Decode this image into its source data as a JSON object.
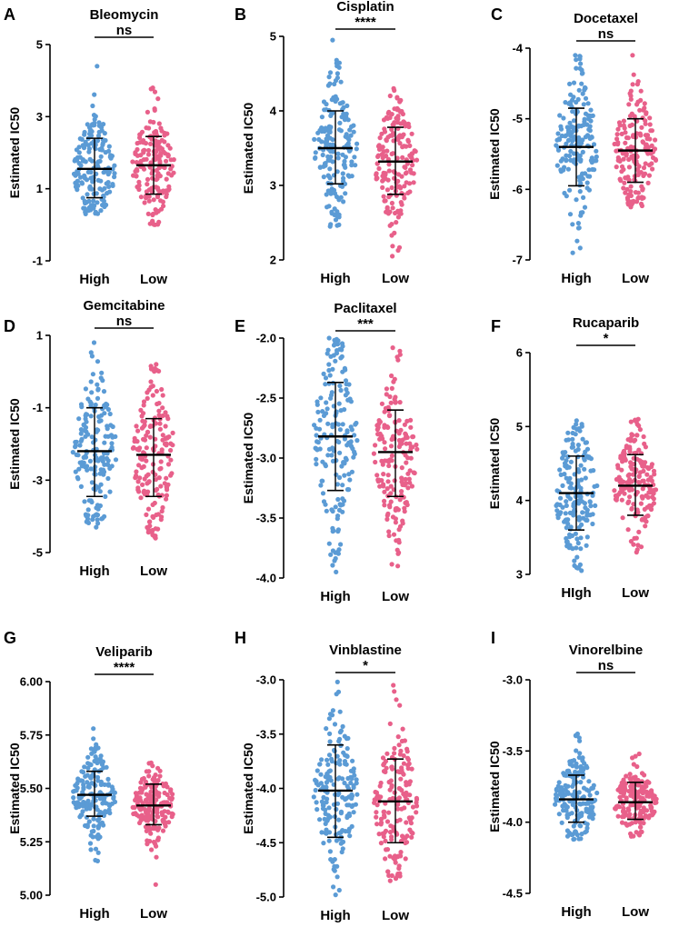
{
  "colors": {
    "high": "#5b9bd5",
    "low": "#e8608a",
    "line": "#000000"
  },
  "chart_data": [
    {
      "panel": "A",
      "type": "scatter",
      "title": "Bleomycin",
      "ylabel": "Estimated IC50",
      "categories": [
        "High",
        "Low"
      ],
      "ylim": [
        -1,
        5
      ],
      "yticks": [
        -1,
        1,
        3,
        5
      ],
      "ytick_labels": [
        "-1",
        "1",
        "3",
        "5"
      ],
      "significance": "ns",
      "groups": [
        {
          "name": "High",
          "mean": 1.55,
          "sd_low": 0.75,
          "sd_high": 2.4,
          "min": 0.3,
          "max": 4.4
        },
        {
          "name": "Low",
          "mean": 1.65,
          "sd_low": 0.85,
          "sd_high": 2.45,
          "min": 0.0,
          "max": 3.8
        }
      ]
    },
    {
      "panel": "B",
      "type": "scatter",
      "title": "Cisplatin",
      "ylabel": "Estimated IC50",
      "categories": [
        "High",
        "Low"
      ],
      "ylim": [
        2,
        5
      ],
      "yticks": [
        2,
        3,
        4,
        5
      ],
      "ytick_labels": [
        "2",
        "3",
        "4",
        "5"
      ],
      "significance": "****",
      "groups": [
        {
          "name": "High",
          "mean": 3.5,
          "sd_low": 3.02,
          "sd_high": 4.0,
          "min": 2.45,
          "max": 4.95
        },
        {
          "name": "Low",
          "mean": 3.32,
          "sd_low": 2.88,
          "sd_high": 3.78,
          "min": 2.05,
          "max": 4.3
        }
      ]
    },
    {
      "panel": "C",
      "type": "scatter",
      "title": "Docetaxel",
      "ylabel": "Estimated IC50",
      "categories": [
        "High",
        "Low"
      ],
      "ylim": [
        -7,
        -4
      ],
      "yticks": [
        -7,
        -6,
        -5,
        -4
      ],
      "ytick_labels": [
        "-7",
        "-6",
        "-5",
        "-4"
      ],
      "significance": "ns",
      "groups": [
        {
          "name": "High",
          "mean": -5.4,
          "sd_low": -5.95,
          "sd_high": -4.85,
          "min": -6.9,
          "max": -4.1
        },
        {
          "name": "Low",
          "mean": -5.45,
          "sd_low": -5.9,
          "sd_high": -5.0,
          "min": -6.25,
          "max": -4.1
        }
      ]
    },
    {
      "panel": "D",
      "type": "scatter",
      "title": "Gemcitabine",
      "ylabel": "Estimated IC50",
      "categories": [
        "High",
        "Low"
      ],
      "ylim": [
        -5,
        1
      ],
      "yticks": [
        -5,
        -3,
        -1,
        1
      ],
      "ytick_labels": [
        "-5",
        "-3",
        "-1",
        "1"
      ],
      "significance": "ns",
      "groups": [
        {
          "name": "High",
          "mean": -2.2,
          "sd_low": -3.45,
          "sd_high": -1.0,
          "min": -4.3,
          "max": 0.8
        },
        {
          "name": "Low",
          "mean": -2.3,
          "sd_low": -3.45,
          "sd_high": -1.3,
          "min": -4.6,
          "max": 0.2
        }
      ]
    },
    {
      "panel": "E",
      "type": "scatter",
      "title": "Paclitaxel",
      "ylabel": "Estimated IC50",
      "categories": [
        "High",
        "Low"
      ],
      "ylim": [
        -4.0,
        -2.0
      ],
      "yticks": [
        -4.0,
        -3.5,
        -3.0,
        -2.5,
        -2.0
      ],
      "ytick_labels": [
        "-4.0",
        "-3.5",
        "-3.0",
        "-2.5",
        "-2.0"
      ],
      "significance": "***",
      "groups": [
        {
          "name": "High",
          "mean": -2.82,
          "sd_low": -3.27,
          "sd_high": -2.37,
          "min": -3.95,
          "max": -2.0
        },
        {
          "name": "Low",
          "mean": -2.95,
          "sd_low": -3.32,
          "sd_high": -2.6,
          "min": -3.9,
          "max": -2.08
        }
      ]
    },
    {
      "panel": "F",
      "type": "scatter",
      "title": "Rucaparib",
      "ylabel": "Estimated IC50",
      "categories": [
        "HIgh",
        "Low"
      ],
      "ylim": [
        3,
        6
      ],
      "yticks": [
        3,
        4,
        5,
        6
      ],
      "ytick_labels": [
        "3",
        "4",
        "5",
        "6"
      ],
      "significance": "*",
      "groups": [
        {
          "name": "HIgh",
          "mean": 4.1,
          "sd_low": 3.6,
          "sd_high": 4.6,
          "min": 3.05,
          "max": 5.08
        },
        {
          "name": "Low",
          "mean": 4.2,
          "sd_low": 3.8,
          "sd_high": 4.62,
          "min": 3.3,
          "max": 5.1
        }
      ]
    },
    {
      "panel": "G",
      "type": "scatter",
      "title": "Veliparib",
      "ylabel": "Estimated IC50",
      "categories": [
        "High",
        "Low"
      ],
      "ylim": [
        5.0,
        6.0
      ],
      "yticks": [
        5.0,
        5.25,
        5.5,
        5.75,
        6.0
      ],
      "ytick_labels": [
        "5.00",
        "5.25",
        "5.50",
        "5.75",
        "6.00"
      ],
      "significance": "****",
      "groups": [
        {
          "name": "High",
          "mean": 5.47,
          "sd_low": 5.37,
          "sd_high": 5.58,
          "min": 5.16,
          "max": 5.78
        },
        {
          "name": "Low",
          "mean": 5.42,
          "sd_low": 5.33,
          "sd_high": 5.52,
          "min": 5.05,
          "max": 5.62
        }
      ]
    },
    {
      "panel": "H",
      "type": "scatter",
      "title": "Vinblastine",
      "ylabel": "Estimated IC50",
      "categories": [
        "High",
        "Low"
      ],
      "ylim": [
        -5.0,
        -3.0
      ],
      "yticks": [
        -5.0,
        -4.5,
        -4.0,
        -3.5,
        -3.0
      ],
      "ytick_labels": [
        "-5.0",
        "-4.5",
        "-4.0",
        "-3.5",
        "-3.0"
      ],
      "significance": "*",
      "groups": [
        {
          "name": "High",
          "mean": -4.02,
          "sd_low": -4.45,
          "sd_high": -3.6,
          "min": -4.98,
          "max": -3.02
        },
        {
          "name": "Low",
          "mean": -4.12,
          "sd_low": -4.5,
          "sd_high": -3.73,
          "min": -4.85,
          "max": -3.05
        }
      ]
    },
    {
      "panel": "I",
      "type": "scatter",
      "title": "Vinorelbine",
      "ylabel": "Estimated IC50",
      "categories": [
        "High",
        "Low"
      ],
      "ylim": [
        -4.5,
        -3.0
      ],
      "yticks": [
        -4.5,
        -4.0,
        -3.5,
        -3.0
      ],
      "ytick_labels": [
        "-4.5",
        "-4.0",
        "-3.5",
        "-3.0"
      ],
      "significance": "ns",
      "groups": [
        {
          "name": "High",
          "mean": -3.84,
          "sd_low": -4.0,
          "sd_high": -3.67,
          "min": -4.12,
          "max": -3.38
        },
        {
          "name": "Low",
          "mean": -3.86,
          "sd_low": -3.98,
          "sd_high": -3.72,
          "min": -4.1,
          "max": -3.52
        }
      ]
    }
  ]
}
